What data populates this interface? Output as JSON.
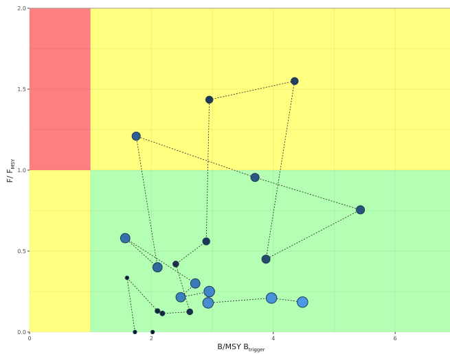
{
  "chart_data": {
    "type": "scatter",
    "title": "",
    "xlabel": {
      "main": "B/MSY B",
      "sub": "trigger"
    },
    "ylabel": {
      "main": "F/ F",
      "sub": "MSY"
    },
    "xlim": [
      0,
      6.9
    ],
    "ylim": [
      0,
      2.0
    ],
    "x_ticks": [
      0,
      2,
      4,
      6
    ],
    "y_ticks": [
      0.0,
      0.5,
      1.0,
      1.5,
      2.0
    ],
    "x_tick_labels": [
      "0",
      "2",
      "4",
      "6"
    ],
    "y_tick_labels": [
      "0.0",
      "0.5",
      "1.0",
      "1.5",
      "2.0"
    ],
    "grid": true,
    "zones": [
      {
        "x": [
          0,
          1
        ],
        "y": [
          1,
          2
        ],
        "color": "#ff7f7f"
      },
      {
        "x": [
          1,
          6.9
        ],
        "y": [
          1,
          2
        ],
        "color": "#ffff80"
      },
      {
        "x": [
          0,
          1
        ],
        "y": [
          0,
          1
        ],
        "color": "#ffff80"
      },
      {
        "x": [
          1,
          6.9
        ],
        "y": [
          0,
          1
        ],
        "color": "#b3ffb3"
      }
    ],
    "points": [
      {
        "x": 1.73,
        "y": 0.0,
        "size": 1,
        "color": "#0d1a26"
      },
      {
        "x": 1.6,
        "y": 0.335,
        "size": 1,
        "color": "#0d1a26"
      },
      {
        "x": 2.1,
        "y": 0.13,
        "size": 2,
        "color": "#13263a"
      },
      {
        "x": 2.18,
        "y": 0.115,
        "size": 2,
        "color": "#13263a"
      },
      {
        "x": 2.63,
        "y": 0.125,
        "size": 3,
        "color": "#1a2f47"
      },
      {
        "x": 2.4,
        "y": 0.42,
        "size": 3,
        "color": "#1a2f47"
      },
      {
        "x": 2.9,
        "y": 0.56,
        "size": 4,
        "color": "#1e3a57"
      },
      {
        "x": 2.95,
        "y": 1.435,
        "size": 4,
        "color": "#1e3a57"
      },
      {
        "x": 4.35,
        "y": 1.55,
        "size": 4,
        "color": "#21405f"
      },
      {
        "x": 3.88,
        "y": 0.45,
        "size": 5,
        "color": "#244a6e"
      },
      {
        "x": 5.43,
        "y": 0.755,
        "size": 5,
        "color": "#27527a"
      },
      {
        "x": 3.7,
        "y": 0.955,
        "size": 5,
        "color": "#2a5885"
      },
      {
        "x": 1.75,
        "y": 1.21,
        "size": 5,
        "color": "#2d6091"
      },
      {
        "x": 2.1,
        "y": 0.4,
        "size": 6,
        "color": "#31699e"
      },
      {
        "x": 1.57,
        "y": 0.58,
        "size": 6,
        "color": "#3572aa"
      },
      {
        "x": 2.72,
        "y": 0.3,
        "size": 6,
        "color": "#3979b5"
      },
      {
        "x": 2.48,
        "y": 0.215,
        "size": 6,
        "color": "#3d80bf"
      },
      {
        "x": 2.95,
        "y": 0.25,
        "size": 7,
        "color": "#4186c8"
      },
      {
        "x": 2.93,
        "y": 0.18,
        "size": 7,
        "color": "#458cd1"
      },
      {
        "x": 3.97,
        "y": 0.21,
        "size": 7,
        "color": "#4892db"
      },
      {
        "x": 4.48,
        "y": 0.185,
        "size": 7,
        "color": "#4c99e6"
      }
    ],
    "extra_points": [
      {
        "x": 2.02,
        "y": 0.0,
        "size": 1,
        "color": "#0d1a26"
      }
    ]
  }
}
